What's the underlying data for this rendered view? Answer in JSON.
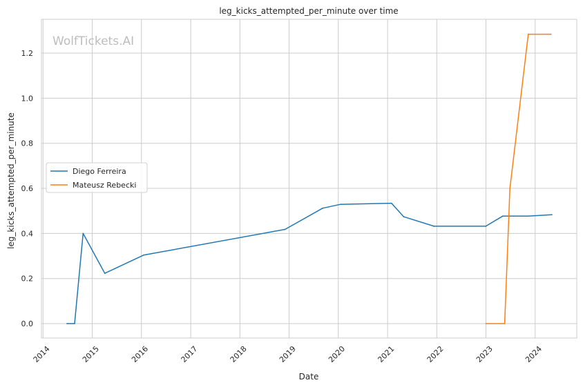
{
  "chart_data": {
    "type": "line",
    "title": "leg_kicks_attempted_per_minute over time",
    "xlabel": "Date",
    "ylabel": "leg_kicks_attempted_per_minute",
    "watermark": "WolfTickets.AI",
    "xlim": [
      "2013-12-20",
      "2024-11-05"
    ],
    "ylim": [
      -0.064,
      1.35
    ],
    "x_ticks": [
      "2014",
      "2015",
      "2016",
      "2017",
      "2018",
      "2019",
      "2020",
      "2021",
      "2022",
      "2023",
      "2024"
    ],
    "y_ticks": [
      "0.0",
      "0.2",
      "0.4",
      "0.6",
      "0.8",
      "1.0",
      "1.2"
    ],
    "grid": true,
    "legend_position": "center-left",
    "series": [
      {
        "name": "Diego Ferreira",
        "color": "#1f77b4",
        "points": [
          {
            "x": "2014-06-28",
            "y": 0.0
          },
          {
            "x": "2014-08-23",
            "y": 0.0
          },
          {
            "x": "2014-10-25",
            "y": 0.4
          },
          {
            "x": "2015-04-04",
            "y": 0.223
          },
          {
            "x": "2016-01-17",
            "y": 0.304
          },
          {
            "x": "2018-12-02",
            "y": 0.418
          },
          {
            "x": "2019-09-07",
            "y": 0.512
          },
          {
            "x": "2020-01-18",
            "y": 0.529
          },
          {
            "x": "2021-01-30",
            "y": 0.534
          },
          {
            "x": "2021-05-01",
            "y": 0.474
          },
          {
            "x": "2021-12-11",
            "y": 0.432
          },
          {
            "x": "2022-12-31",
            "y": 0.432
          },
          {
            "x": "2023-05-06",
            "y": 0.477
          },
          {
            "x": "2023-11-11",
            "y": 0.477
          },
          {
            "x": "2024-05-04",
            "y": 0.483
          }
        ]
      },
      {
        "name": "Mateusz Rebecki",
        "color": "#ff7f0e",
        "points": [
          {
            "x": "2023-01-01",
            "y": 0.0
          },
          {
            "x": "2023-05-20",
            "y": 0.0
          },
          {
            "x": "2023-06-28",
            "y": 0.6
          },
          {
            "x": "2023-11-11",
            "y": 1.284
          },
          {
            "x": "2024-04-27",
            "y": 1.284
          }
        ]
      }
    ]
  }
}
